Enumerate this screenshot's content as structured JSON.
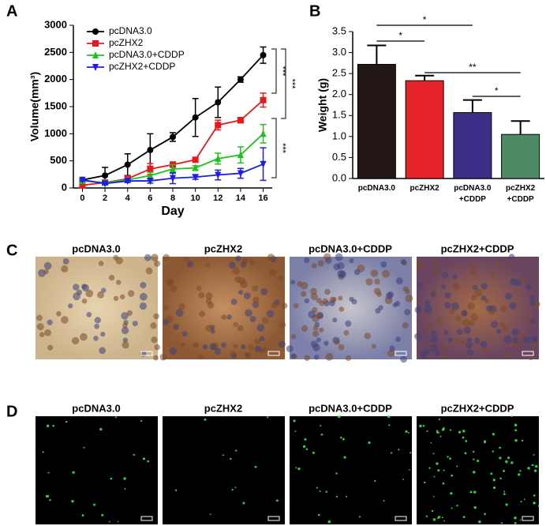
{
  "chart_data": [
    {
      "type": "line",
      "panel_label": "A",
      "y_label": "Volume(mm³)",
      "x_label": "Day",
      "x": [
        0,
        2,
        4,
        6,
        8,
        10,
        12,
        14,
        16
      ],
      "xlim": [
        -0.8,
        16.8
      ],
      "xticks": [
        0,
        2,
        4,
        6,
        8,
        10,
        12,
        14,
        16
      ],
      "ylim": [
        0,
        3000
      ],
      "yticks": [
        0,
        500,
        1000,
        1500,
        2000,
        2500,
        3000
      ],
      "legend": "upper left",
      "series": [
        {
          "name": "pcDNA3.0",
          "color": "#000000",
          "marker": "circle",
          "values": [
            150,
            230,
            430,
            700,
            940,
            1300,
            1580,
            2000,
            2450
          ],
          "errors": [
            20,
            150,
            200,
            300,
            80,
            350,
            280,
            50,
            150
          ]
        },
        {
          "name": "pcZHX2",
          "color": "#e8191e",
          "marker": "square",
          "values": [
            50,
            100,
            170,
            350,
            430,
            520,
            1160,
            1250,
            1620
          ],
          "errors": [
            20,
            30,
            50,
            100,
            50,
            30,
            90,
            50,
            130
          ]
        },
        {
          "name": "pcDNA3.0+CDDP",
          "color": "#1ec21e",
          "marker": "triangle-up",
          "values": [
            130,
            100,
            150,
            230,
            350,
            370,
            540,
            610,
            1000
          ],
          "errors": [
            20,
            20,
            30,
            60,
            80,
            40,
            100,
            150,
            170
          ]
        },
        {
          "name": "pcZHX2+CDDP",
          "color": "#1e1ee0",
          "marker": "triangle-down",
          "values": [
            150,
            80,
            130,
            130,
            180,
            200,
            240,
            270,
            440
          ],
          "errors": [
            20,
            20,
            30,
            40,
            100,
            40,
            90,
            90,
            300
          ]
        }
      ],
      "annotations": [
        "***",
        "***",
        "***"
      ]
    },
    {
      "type": "bar",
      "panel_label": "B",
      "y_label": "Weight (g)",
      "categories": [
        "pcDNA3.0",
        "pcZHX2",
        "pcDNA3.0\n+CDDP",
        "pcZHX2\n+CDDP"
      ],
      "values": [
        2.72,
        2.33,
        1.57,
        1.05
      ],
      "errors": [
        0.45,
        0.12,
        0.3,
        0.32
      ],
      "colors": [
        "#231815",
        "#e8242b",
        "#3b2f87",
        "#4e8a63"
      ],
      "ylim": [
        0,
        3.5
      ],
      "yticks": [
        {
          "value": 0,
          "label": "0.0"
        },
        0.5,
        {
          "value": 1,
          "label": "1.0"
        },
        1.5,
        {
          "value": 2,
          "label": "2.0"
        },
        2.5,
        {
          "value": 3,
          "label": "3.0"
        },
        3.5
      ],
      "annotations": [
        "*",
        "*",
        "**",
        "*"
      ]
    }
  ],
  "ihc": {
    "panel_label": "C",
    "titles": [
      "pcDNA3.0",
      "pcZHX2",
      "pcDNA3.0+CDDP",
      "pcZHX2+CDDP"
    ]
  },
  "tunel": {
    "panel_label": "D",
    "titles": [
      "pcDNA3.0",
      "pcZHX2",
      "pcDNA3.0+CDDP",
      "pcZHX2+CDDP"
    ]
  }
}
